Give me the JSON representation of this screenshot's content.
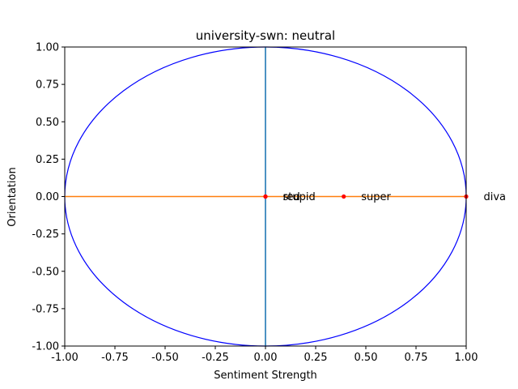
{
  "chart_data": {
    "type": "scatter",
    "title": "university-swn: neutral",
    "xlabel": "Sentiment Strength",
    "ylabel": "Orientation",
    "xlim": [
      -1.0,
      1.0
    ],
    "ylim": [
      -1.0,
      1.0
    ],
    "xticks": [
      "-1.00",
      "-0.75",
      "-0.50",
      "-0.25",
      "0.00",
      "0.25",
      "0.50",
      "0.75",
      "1.00"
    ],
    "yticks": [
      "-1.00",
      "-0.75",
      "-0.50",
      "-0.25",
      "0.00",
      "0.25",
      "0.50",
      "0.75",
      "1.00"
    ],
    "grid": false,
    "unit_circle": {
      "color": "#0000ff"
    },
    "reference_lines": [
      {
        "orientation": "vertical",
        "x": 0.0,
        "color": "#1f77b4"
      },
      {
        "orientation": "horizontal",
        "y": 0.0,
        "color": "#ff7f0e"
      }
    ],
    "points": [
      {
        "label": "red",
        "x": 0.0,
        "y": 0.0
      },
      {
        "label": "stupid",
        "x": 0.0,
        "y": 0.0
      },
      {
        "label": "super",
        "x": 0.39,
        "y": 0.0
      },
      {
        "label": "diva",
        "x": 1.0,
        "y": 0.0
      }
    ],
    "point_color": "#ff0000"
  }
}
